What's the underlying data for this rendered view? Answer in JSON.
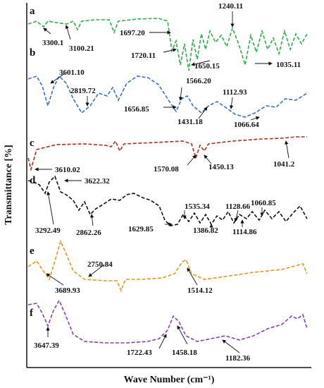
{
  "chart_data": {
    "type": "spectra",
    "y_axis_label": "Transmittance [%]",
    "x_axis_label": "Wave Number (cm⁻¹)",
    "panels": [
      {
        "label": "a",
        "color": "#2bb04a",
        "annotations": [
          "3300.1",
          "3100.21",
          "1697.20",
          "1240.11",
          "1720.11",
          "1650.15",
          "1035.11"
        ]
      },
      {
        "label": "b",
        "color": "#3a70c2",
        "annotations": [
          "3601.10",
          "2819.72",
          "1566.20",
          "1112.93",
          "1656.85",
          "1431.18",
          "1066.64"
        ]
      },
      {
        "label": "c",
        "color": "#a83222",
        "annotations": [
          "3610.02",
          "1570.08",
          "1450.13",
          "1041.2"
        ]
      },
      {
        "label": "d",
        "color": "#111111",
        "annotations": [
          "3622.32",
          "3292.49",
          "2862.26",
          "1535.34",
          "1128.66",
          "1060.85",
          "1629.85",
          "1386.82",
          "1114.86"
        ]
      },
      {
        "label": "e",
        "color": "#e29a1c",
        "annotations": [
          "2750.84",
          "3689.93",
          "1514.12"
        ]
      },
      {
        "label": "f",
        "color": "#8a40b8",
        "annotations": [
          "3647.39",
          "1722.43",
          "1458.18",
          "1182.36"
        ]
      }
    ]
  }
}
